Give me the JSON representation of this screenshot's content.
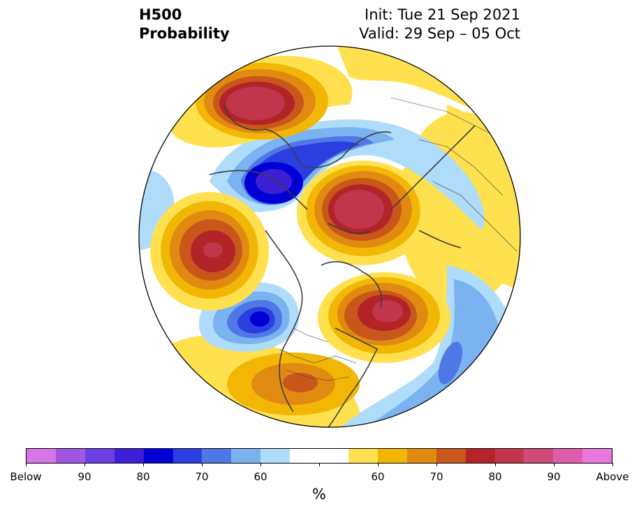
{
  "header": {
    "variable": "H500",
    "product": "Probability",
    "init": "Init: Tue 21 Sep 2021",
    "valid": "Valid: 29 Sep – 05 Oct"
  },
  "colors": {
    "below_90plus": "#d577e8",
    "below_85": "#a056e0",
    "below_80": "#6b3fe0",
    "below_75": "#3d1fd6",
    "below_70": "#0000d6",
    "below_65": "#2a3fe0",
    "below_60": "#4f78e6",
    "below_55": "#7bb2f0",
    "below_50": "#aedcfa",
    "neutral": "#ffffff",
    "above_50": "#ffe14f",
    "above_55": "#f2b705",
    "above_60": "#e08a12",
    "above_65": "#c9561a",
    "above_70": "#b22428",
    "above_75": "#c2364d",
    "above_80": "#d04a7a",
    "above_85": "#dc5cae",
    "above_90plus": "#e878dc"
  },
  "colorbar": {
    "segments": [
      "#d577e8",
      "#a056e0",
      "#6b3fe0",
      "#3d1fd6",
      "#0000d6",
      "#2a3fe0",
      "#4f78e6",
      "#7bb2f0",
      "#aedcfa",
      "#ffffff",
      "#ffffff",
      "#ffe14f",
      "#f2b705",
      "#e08a12",
      "#c9561a",
      "#b22428",
      "#c2364d",
      "#d04a7a",
      "#dc5cae",
      "#e878dc"
    ],
    "labels": [
      "Below",
      "90",
      "80",
      "70",
      "60",
      "60",
      "70",
      "80",
      "90",
      "Above"
    ],
    "unit": "%"
  }
}
